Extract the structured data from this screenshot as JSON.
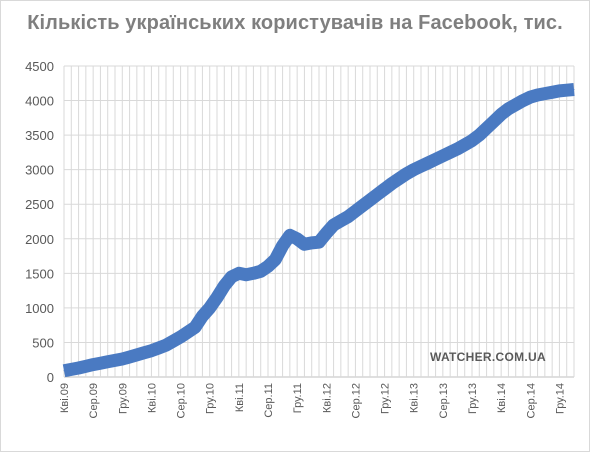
{
  "title": "Кількість українських користувачів на Facebook, тис.",
  "watermark": "WATCHER.COM.UA",
  "colors": {
    "series": "#4a7ac2",
    "grid": "#d9d9d9",
    "axis": "#bfbfbf",
    "text": "#595959",
    "title": "#7f7f7f"
  },
  "chart_data": {
    "type": "line",
    "title": "Кількість українських користувачів на Facebook, тис.",
    "xlabel": "",
    "ylabel": "",
    "ylim": [
      0,
      4500
    ],
    "yticks": [
      0,
      500,
      1000,
      1500,
      2000,
      2500,
      3000,
      3500,
      4000,
      4500
    ],
    "grid": true,
    "legend": "none",
    "x_tick_labels": [
      "Кві.09",
      "Сер.09",
      "Гру.09",
      "Кві.10",
      "Сер.10",
      "Гру.10",
      "Кві.11",
      "Сер.11",
      "Гру.11",
      "Кві.12",
      "Сер.12",
      "Гру.12",
      "Кві.13",
      "Сер.13",
      "Гру.13",
      "Кві.14",
      "Сер.14",
      "Гру.14"
    ],
    "series": [
      {
        "x": [
          "Кві.09",
          "Тра.09",
          "Чер.09",
          "Лип.09",
          "Сер.09",
          "Вер.09",
          "Жов.09",
          "Лис.09",
          "Гру.09",
          "Січ.10",
          "Лют.10",
          "Бер.10",
          "Кві.10",
          "Тра.10",
          "Чер.10",
          "Лип.10",
          "Сер.10",
          "Вер.10",
          "Жов.10",
          "Лис.10",
          "Гру.10",
          "Січ.11",
          "Лют.11",
          "Бер.11",
          "Кві.11",
          "Тра.11",
          "Чер.11",
          "Лип.11",
          "Сер.11",
          "Вер.11",
          "Жов.11",
          "Лис.11",
          "Гру.11",
          "Січ.12",
          "Лют.12",
          "Бер.12",
          "Кві.12",
          "Тра.12",
          "Чер.12",
          "Лип.12",
          "Сер.12",
          "Вер.12",
          "Жов.12",
          "Лис.12",
          "Гру.12",
          "Січ.13",
          "Лют.13",
          "Бер.13",
          "Кві.13",
          "Тра.13",
          "Чер.13",
          "Лип.13",
          "Сер.13",
          "Вер.13",
          "Жов.13",
          "Лис.13",
          "Гру.13",
          "Січ.14",
          "Лют.14",
          "Бер.14",
          "Кві.14",
          "Тра.14",
          "Чер.14",
          "Лип.14",
          "Сер.14",
          "Вер.14",
          "Жов.14",
          "Лис.14",
          "Гру.14",
          "Січ.15",
          "Лют.15"
        ],
        "values": [
          90,
          110,
          130,
          155,
          180,
          200,
          220,
          240,
          260,
          290,
          320,
          350,
          380,
          420,
          460,
          520,
          580,
          650,
          720,
          880,
          1000,
          1150,
          1320,
          1450,
          1500,
          1480,
          1500,
          1530,
          1600,
          1700,
          1900,
          2050,
          2000,
          1920,
          1940,
          1950,
          2080,
          2200,
          2260,
          2320,
          2400,
          2480,
          2560,
          2640,
          2720,
          2800,
          2870,
          2940,
          3000,
          3050,
          3100,
          3150,
          3200,
          3250,
          3300,
          3360,
          3420,
          3500,
          3600,
          3700,
          3800,
          3880,
          3940,
          4000,
          4050,
          4080,
          4100,
          4120,
          4140,
          4150,
          4160
        ]
      }
    ]
  }
}
